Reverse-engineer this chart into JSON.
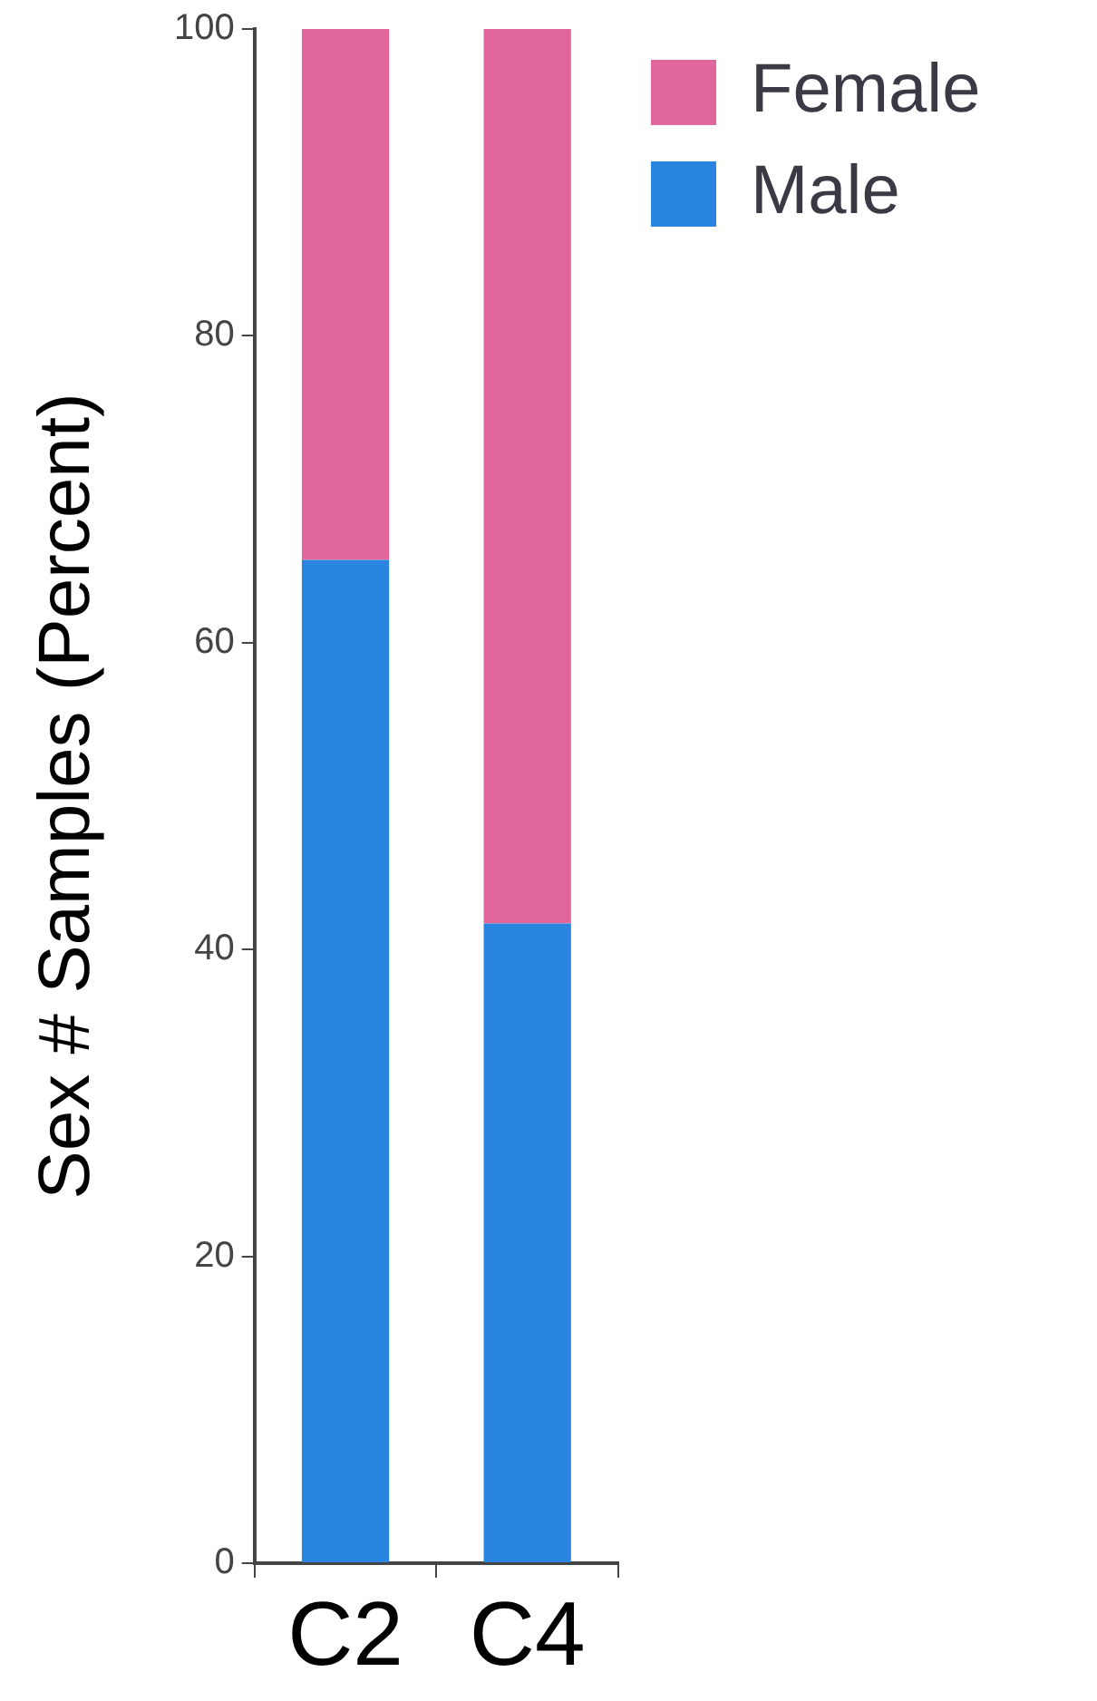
{
  "chart_data": {
    "type": "bar",
    "ylabel": "Sex # Samples (Percent)",
    "categories": [
      "C2",
      "C4"
    ],
    "stacked": true,
    "series": [
      {
        "name": "Male",
        "color": "#2a85e0",
        "values": [
          65.4,
          41.7
        ]
      },
      {
        "name": "Female",
        "color": "#e0669c",
        "values": [
          34.6,
          58.3
        ]
      }
    ],
    "ylim": [
      0,
      100
    ],
    "yticks": [
      0,
      20,
      40,
      60,
      80,
      100
    ],
    "grid": false,
    "legend": "top right"
  }
}
